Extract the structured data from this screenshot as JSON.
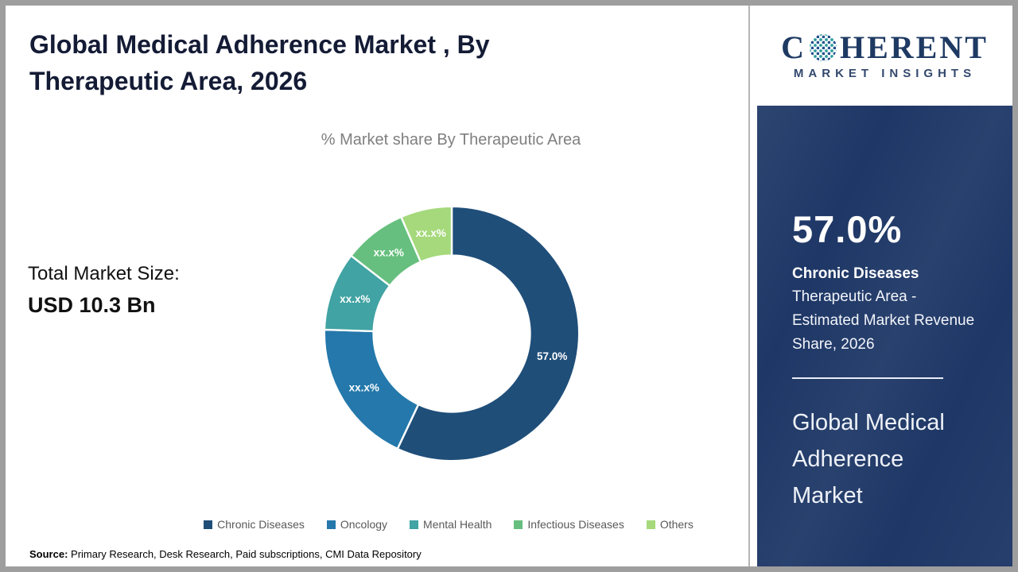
{
  "page": {
    "title": "Global Medical Adherence Market , By Therapeutic Area, 2026"
  },
  "total_market": {
    "label": "Total Market Size:",
    "value": "USD 10.3 Bn"
  },
  "chart_data": {
    "type": "pie",
    "subtype": "donut",
    "title": "% Market share By Therapeutic Area",
    "categories": [
      "Chronic Diseases",
      "Oncology",
      "Mental Health",
      "Infectious Diseases",
      "Others"
    ],
    "values": [
      57.0,
      18.5,
      10.0,
      8.0,
      6.5
    ],
    "labels": [
      "57.0%",
      "xx.x%",
      "xx.x%",
      "xx.x%",
      "xx.x%"
    ],
    "colors": [
      "#1f4e79",
      "#2478ab",
      "#41a3a3",
      "#66bf7e",
      "#a5d97c"
    ],
    "legend_position": "bottom",
    "start_angle_deg": 0,
    "direction": "clockwise"
  },
  "source": {
    "label": "Source:",
    "text": "Primary Research, Desk Research, Paid subscriptions, CMI Data Repository"
  },
  "sidebar": {
    "stat_value": "57.0%",
    "stat_title": "Chronic Diseases",
    "stat_description": "Therapeutic Area - Estimated Market Revenue Share, 2026",
    "market_name": "Global Medical Adherence Market",
    "panel_color": "#1e3766"
  },
  "logo": {
    "word_start": "C",
    "word_end": "HERENT",
    "subtitle": "MARKET INSIGHTS"
  }
}
